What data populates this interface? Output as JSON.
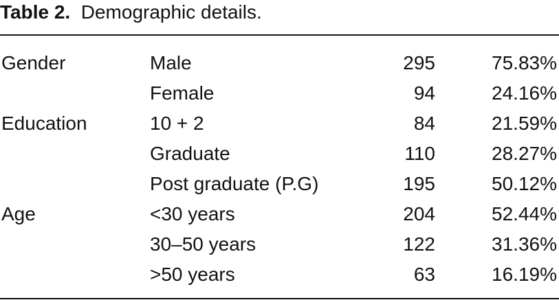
{
  "title": {
    "label": "Table 2.",
    "text": "Demographic details."
  },
  "groups": [
    {
      "name": "Gender",
      "items": [
        {
          "label": "Male",
          "count": 295,
          "percent": "75.83%"
        },
        {
          "label": "Female",
          "count": 94,
          "percent": "24.16%"
        }
      ]
    },
    {
      "name": "Education",
      "items": [
        {
          "label": "10 + 2",
          "count": 84,
          "percent": "21.59%"
        },
        {
          "label": "Graduate",
          "count": 110,
          "percent": "28.27%"
        },
        {
          "label": "Post graduate (P.G)",
          "count": 195,
          "percent": "50.12%"
        }
      ]
    },
    {
      "name": "Age",
      "items": [
        {
          "label": "<30 years",
          "count": 204,
          "percent": "52.44%"
        },
        {
          "label": "30–50 years",
          "count": 122,
          "percent": "31.36%"
        },
        {
          "label": ">50 years",
          "count": 63,
          "percent": "16.19%"
        }
      ]
    }
  ]
}
